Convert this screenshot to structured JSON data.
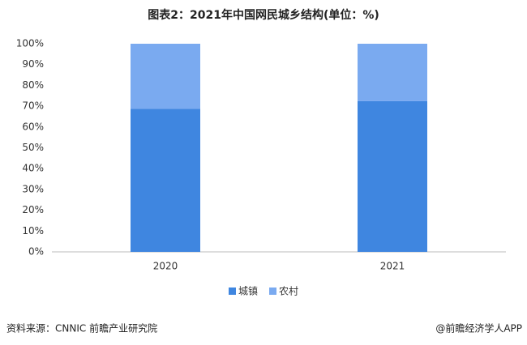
{
  "chart_data": {
    "type": "stacked_bar",
    "title": "图表2：2021年中国网民城乡结构(单位：%)",
    "categories": [
      "2020",
      "2021"
    ],
    "series": [
      {
        "name": "城镇",
        "color": "#3f86e0",
        "values": [
          68.7,
          72.4
        ]
      },
      {
        "name": "农村",
        "color": "#7aaaf0",
        "values": [
          31.3,
          27.6
        ]
      }
    ],
    "ylim": [
      0,
      100
    ],
    "yticks": [
      {
        "value": 0,
        "label": "0%"
      },
      {
        "value": 10,
        "label": "10%"
      },
      {
        "value": 20,
        "label": "20%"
      },
      {
        "value": 30,
        "label": "30%"
      },
      {
        "value": 40,
        "label": "40%"
      },
      {
        "value": 50,
        "label": "50%"
      },
      {
        "value": 60,
        "label": "60%"
      },
      {
        "value": 70,
        "label": "70%"
      },
      {
        "value": 80,
        "label": "80%"
      },
      {
        "value": 90,
        "label": "90%"
      },
      {
        "value": 100,
        "label": "100%"
      }
    ],
    "grid": false,
    "legend": "bottom",
    "source": "资料来源：CNNIC 前瞻产业研究院",
    "credit": "@前瞻经济学人APP"
  }
}
